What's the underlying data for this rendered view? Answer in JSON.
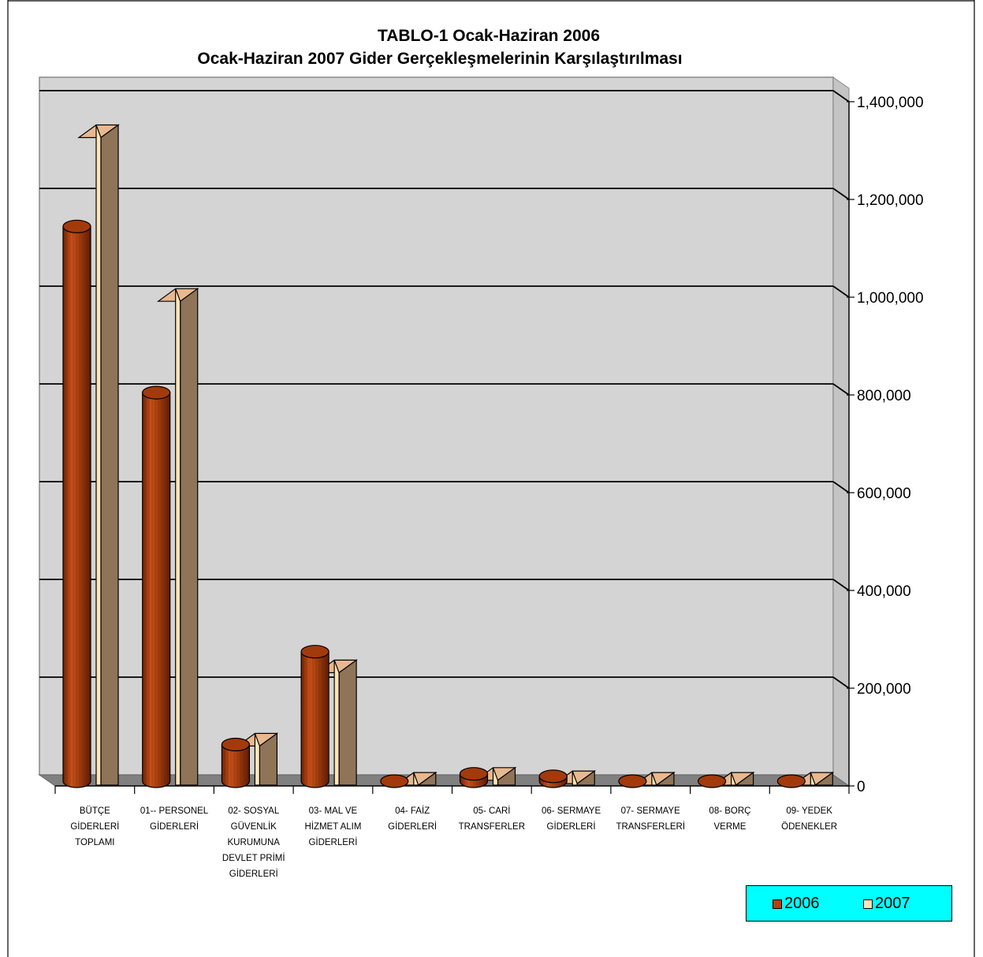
{
  "chart_data": {
    "type": "bar",
    "title_line1": "TABLO-1 Ocak-Haziran 2006",
    "title_line2": "Ocak-Haziran 2007 Gider Gerçekleşmelerinin Karşılaştırılması",
    "categories": [
      [
        "BÜTÇE",
        "GİDERLERİ",
        "TOPLAMI"
      ],
      [
        "01-- PERSONEL",
        "GİDERLERİ"
      ],
      [
        "02- SOSYAL",
        "GÜVENLİK",
        "KURUMUNA",
        "DEVLET PRİMİ",
        "GİDERLERİ"
      ],
      [
        "03- MAL VE",
        "HİZMET ALIM",
        "GİDERLERİ"
      ],
      [
        "04- FAİZ",
        "GİDERLERİ"
      ],
      [
        "05- CARİ",
        "TRANSFERLER"
      ],
      [
        "06- SERMAYE",
        "GİDERLERİ"
      ],
      [
        "07- SERMAYE",
        "TRANSFERLERİ"
      ],
      [
        "08- BORÇ",
        "VERME"
      ],
      [
        "09- YEDEK",
        "ÖDENEKLER"
      ]
    ],
    "series": [
      {
        "name": "2006",
        "values": [
          1135000,
          795000,
          75000,
          265000,
          0,
          15000,
          10000,
          0,
          0,
          0
        ]
      },
      {
        "name": "2007",
        "values": [
          1325000,
          990000,
          80000,
          230000,
          0,
          10000,
          3000,
          0,
          0,
          0
        ]
      }
    ],
    "ylim": [
      0,
      1400000
    ],
    "yticks": [
      "1,400,000",
      "1,200,000",
      "1,000,000",
      "800,000",
      "600,000",
      "400,000",
      "200,000",
      "0"
    ],
    "grid": true,
    "legend_position": "bottom-right"
  },
  "colors": {
    "series_2006": "#b5420e",
    "series_2007_front": "#ffe4b5",
    "series_2007_side": "#8f7458",
    "plot_wall": "#d4d4d4",
    "legend_bg": "#00ffff"
  }
}
